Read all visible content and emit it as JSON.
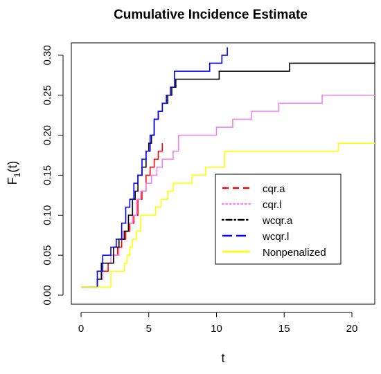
{
  "chart_data": {
    "type": "line",
    "title": "Cumulative Incidence Estimate",
    "xlabel": "t",
    "ylabel": {
      "base": "F",
      "sub": "1",
      "rest": "(t)"
    },
    "xlim": [
      0,
      22
    ],
    "ylim": [
      0,
      0.31
    ],
    "x_ticks": [
      0,
      5,
      10,
      15,
      20
    ],
    "y_ticks": [
      "0.00",
      "0.05",
      "0.10",
      "0.15",
      "0.20",
      "0.25",
      "0.30"
    ],
    "grid": false,
    "legend_position": "center-right",
    "series": [
      {
        "name": "cqr.a",
        "color": "#ff0000",
        "dash": "dashed",
        "x": [
          0,
          1.2,
          1.6,
          2.0,
          2.4,
          2.7,
          3.0,
          3.3,
          3.6,
          3.9,
          4.2,
          4.5,
          4.8,
          5.1,
          5.4,
          5.7,
          6.0
        ],
        "y": [
          0.01,
          0.02,
          0.03,
          0.04,
          0.05,
          0.06,
          0.07,
          0.08,
          0.09,
          0.1,
          0.12,
          0.13,
          0.15,
          0.16,
          0.17,
          0.18,
          0.19
        ]
      },
      {
        "name": "cqr.l",
        "color": "#ee82ee",
        "dash": "dotted",
        "x": [
          0,
          1.2,
          1.6,
          2.2,
          2.8,
          3.1,
          3.5,
          3.8,
          4.1,
          4.4,
          4.8,
          5.2,
          5.6,
          6.0,
          6.8,
          7.2,
          10.0,
          11.2,
          12.6,
          14.6,
          17.8,
          22
        ],
        "y": [
          0.01,
          0.02,
          0.04,
          0.05,
          0.07,
          0.08,
          0.09,
          0.1,
          0.12,
          0.13,
          0.14,
          0.15,
          0.16,
          0.17,
          0.18,
          0.2,
          0.21,
          0.22,
          0.23,
          0.24,
          0.25,
          0.25
        ]
      },
      {
        "name": "wcqr.a",
        "color": "#000000",
        "dash": "dotdash",
        "x": [
          0,
          1.2,
          1.5,
          2.4,
          2.8,
          3.2,
          3.5,
          3.8,
          4.0,
          4.2,
          4.5,
          4.8,
          5.0,
          5.2,
          5.4,
          5.7,
          6.0,
          6.4,
          6.7,
          7.0,
          10.0,
          10.2,
          15.4,
          22
        ],
        "y": [
          0.01,
          0.02,
          0.04,
          0.06,
          0.07,
          0.08,
          0.1,
          0.12,
          0.13,
          0.15,
          0.16,
          0.18,
          0.19,
          0.2,
          0.22,
          0.23,
          0.24,
          0.25,
          0.26,
          0.27,
          0.27,
          0.28,
          0.29,
          0.29
        ]
      },
      {
        "name": "wcqr.l",
        "color": "#0000ff",
        "dash": "longdash",
        "x": [
          0,
          1.2,
          1.6,
          2.2,
          2.6,
          3.0,
          3.3,
          3.6,
          3.9,
          4.2,
          4.5,
          4.8,
          5.1,
          5.4,
          5.7,
          6.0,
          6.3,
          6.6,
          6.9,
          9.5,
          10.4,
          10.8
        ],
        "y": [
          0.01,
          0.03,
          0.05,
          0.06,
          0.07,
          0.09,
          0.11,
          0.12,
          0.14,
          0.15,
          0.17,
          0.18,
          0.2,
          0.22,
          0.23,
          0.24,
          0.25,
          0.26,
          0.28,
          0.29,
          0.3,
          0.31
        ]
      },
      {
        "name": "Nonpenalized",
        "color": "#ffff00",
        "dash": "solid",
        "x": [
          0,
          2.2,
          3.2,
          3.4,
          3.6,
          3.8,
          4.1,
          4.4,
          5.5,
          5.9,
          6.4,
          6.8,
          8.2,
          9.2,
          10.6,
          19.0,
          22
        ],
        "y": [
          0.01,
          0.03,
          0.04,
          0.05,
          0.06,
          0.07,
          0.08,
          0.1,
          0.11,
          0.12,
          0.13,
          0.14,
          0.15,
          0.16,
          0.18,
          0.19,
          0.19
        ]
      }
    ]
  }
}
